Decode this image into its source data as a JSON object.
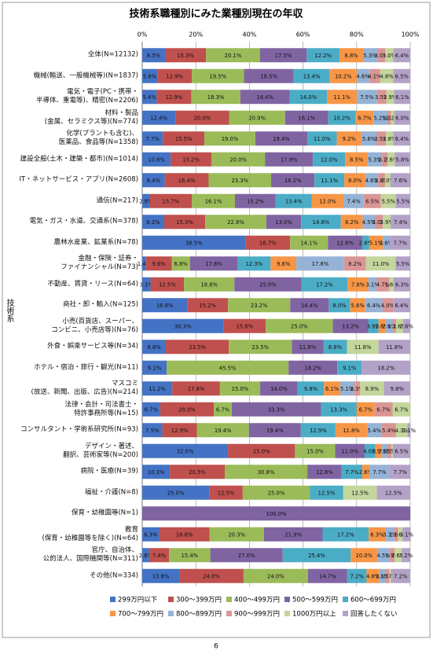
{
  "chart_data": {
    "type": "stacked-bar-horizontal",
    "title": "技術系職種別にみた業種別現在の年収",
    "y_label": "技術系",
    "categories": [
      "全体(N=12132)",
      "機械(輸送、一般機械等)(N=1837)",
      "電気・電子(PC・携帯・\n半導体、重電等)、精密(N=2206)",
      "材料・製品\n(金属、セラミクス等)(N=774)",
      "化学(プラントも含む)、\n医薬品、食品等(N=1358)",
      "建設全般(土木・建築・都市)(N=1014)",
      "IT・ネットサービス・アプリ(N=2608)",
      "通信(N=217)",
      "電気・ガス・水道、交通系(N=378)",
      "農林水産業、鉱業系(N=78)",
      "金融・保険・証券・\nファイナンシャル(N=73)",
      "不動産、賃貸・リース(N=64)",
      "商社・卸・輸入(N=125)",
      "小売(百貨店、スーパー、\nコンビニ、小売店等)(N=76)",
      "外食・娯楽サービス等(N=34)",
      "ホテル・宿泊・旅行・観光(N=11)",
      "マスコミ\n(放送、新聞、出版、広告)(N=214)",
      "法律・会計・司法書士・\n特許事務所等(N=15)",
      "コンサルタント・学術系研究所(N=93)",
      "デザイン・著述、\n翻訳、芸術家等(N=200)",
      "病院・医療(N=39)",
      "福祉・介護(N=8)",
      "保育・幼稚園等(N=1)",
      "教育\n(保育・幼稚園等を除く)(N=64)",
      "官庁、自治体、\n公的法人、国際機関等(N=311)",
      "その他(N=334)"
    ],
    "xlim": [
      0,
      100
    ],
    "xticks": [
      {
        "value": 0,
        "label": "0%"
      },
      {
        "value": 20,
        "label": "20%"
      },
      {
        "value": 40,
        "label": "40%"
      },
      {
        "value": 60,
        "label": "60%"
      },
      {
        "value": 80,
        "label": "80%"
      },
      {
        "value": 100,
        "label": "100%"
      }
    ],
    "grid": true,
    "legend": "bottom",
    "series": [
      {
        "name": "299万円以下",
        "color": "#4472c4",
        "values": [
          8.5,
          5.6,
          5.4,
          12.4,
          7.7,
          10.6,
          8.4,
          2.8,
          8.2,
          38.5,
          1.4,
          3.1,
          16.8,
          30.3,
          8.8,
          9.1,
          11.2,
          6.7,
          7.5,
          32.0,
          10.3,
          25.0,
          0,
          6.3,
          2.6,
          13.8
        ],
        "value_labels": [
          "8.5%",
          "5.6%",
          "5.4%",
          "12.4%",
          "7.7%",
          "10.6%",
          "8.4%",
          "2.8%",
          "8.2%",
          "38.5%",
          "1.4%",
          "3.1%",
          "16.8%",
          "30.3%",
          "8.8%",
          "9.1%",
          "11.2%",
          "6.7%",
          "7.5%",
          "32.0%",
          "10.3%",
          "25.0%",
          null,
          "6.3%",
          "2.6%",
          "13.8%"
        ]
      },
      {
        "name": "300～399万円",
        "color": "#c0504d",
        "values": [
          15.3,
          12.9,
          12.9,
          20.0,
          15.5,
          15.2,
          16.4,
          15.7,
          15.3,
          16.7,
          9.6,
          12.5,
          15.2,
          15.8,
          23.5,
          0,
          17.8,
          20.0,
          12.9,
          25.0,
          20.5,
          12.5,
          0,
          18.8,
          7.4,
          24.0
        ],
        "value_labels": [
          "15.3%",
          "12.9%",
          "12.9%",
          "20.0%",
          "15.5%",
          "15.2%",
          "16.4%",
          "15.7%",
          "15.3%",
          "16.7%",
          "9.6%",
          "12.5%",
          "15.2%",
          "15.8%",
          "23.5%",
          null,
          "17.8%",
          "20.0%",
          "12.9%",
          "25.0%",
          "20.5%",
          "12.5%",
          null,
          "18.8%",
          "7.4%",
          "24.0%"
        ]
      },
      {
        "name": "400～499万円",
        "color": "#9bbb59",
        "values": [
          20.1,
          19.5,
          18.3,
          20.9,
          19.0,
          20.0,
          23.3,
          16.1,
          22.8,
          14.1,
          6.8,
          18.8,
          23.2,
          25.0,
          23.5,
          45.5,
          15.0,
          6.7,
          19.4,
          15.0,
          30.8,
          25.0,
          0,
          20.3,
          15.4,
          24.0
        ],
        "value_labels": [
          "20.1%",
          "19.5%",
          "18.3%",
          "20.9%",
          "19.0%",
          "20.0%",
          "23.3%",
          "16.1%",
          "22.8%",
          "14.1%",
          "6.8%",
          "18.8%",
          "23.2%",
          "25.0%",
          "23.5%",
          "45.5%",
          "15.0%",
          "6.7%",
          "19.4%",
          "15.0%",
          "30.8%",
          "25.0%",
          null,
          "20.3%",
          "15.4%",
          "24.0%"
        ]
      },
      {
        "name": "500～599万円",
        "color": "#8064a2",
        "values": [
          17.5,
          18.5,
          18.4,
          16.1,
          19.4,
          17.9,
          16.2,
          15.2,
          13.0,
          12.8,
          17.8,
          25.0,
          14.4,
          13.2,
          11.8,
          18.2,
          14.0,
          33.3,
          19.4,
          11.0,
          12.8,
          0,
          100.0,
          21.9,
          27.0,
          14.7
        ],
        "value_labels": [
          "17.5%",
          "18.5%",
          "18.4%",
          "16.1%",
          "19.4%",
          "17.9%",
          "16.2%",
          "15.2%",
          "13.0%",
          "12.8%",
          "17.8%",
          "25.0%",
          "14.4%",
          "13.2%",
          "11.8%",
          "18.2%",
          "14.0%",
          "33.3%",
          "19.4%",
          "11.0%",
          "12.8%",
          null,
          "100.0%",
          "21.9%",
          "27.0%",
          "14.7%"
        ]
      },
      {
        "name": "600～699万円",
        "color": "#4bacc6",
        "values": [
          12.2,
          13.4,
          14.0,
          10.2,
          11.0,
          12.0,
          11.1,
          13.4,
          14.8,
          2.6,
          12.3,
          17.2,
          8.0,
          3.9,
          8.8,
          9.1,
          9.8,
          13.3,
          12.9,
          4.0,
          7.7,
          12.5,
          0,
          17.2,
          25.4,
          7.2
        ],
        "value_labels": [
          "12.2%",
          "13.4%",
          "14.0%",
          "10.2%",
          "11.0%",
          "12.0%",
          "11.1%",
          "13.4%",
          "14.8%",
          "2.6%",
          "12.3%",
          "17.2%",
          "8.0%",
          "3.9%",
          "8.8%",
          "9.1%",
          "9.8%",
          "13.3%",
          "12.9%",
          "4.0%",
          "7.7%",
          "12.5%",
          null,
          "17.2%",
          "25.4%",
          "7.2%"
        ]
      },
      {
        "name": "700～799万円",
        "color": "#f79646",
        "values": [
          8.8,
          10.2,
          11.1,
          6.7,
          9.2,
          8.5,
          8.0,
          12.0,
          8.2,
          5.1,
          9.6,
          7.8,
          5.6,
          2.6,
          0,
          0,
          6.1,
          6.7,
          11.8,
          2.5,
          2.6,
          0,
          0,
          6.3,
          10.0,
          4.8
        ],
        "value_labels": [
          "8.8%",
          "10.2%",
          "11.1%",
          "6.7%",
          "9.2%",
          "8.5%",
          "8.0%",
          "12.0%",
          "8.2%",
          "5.1%",
          "9.6%",
          "7.8%",
          "5.6%",
          "2.6%",
          null,
          null,
          "6.1%",
          "6.7%",
          "11.8%",
          "2.5%",
          "2.6%",
          null,
          null,
          "6.3%",
          "10.0%",
          "4.8%"
        ]
      },
      {
        "name": "800～899万円",
        "color": "#95b3d7",
        "values": [
          5.3,
          4.6,
          7.5,
          5.2,
          5.6,
          5.3,
          4.6,
          7.4,
          4.5,
          2.6,
          17.8,
          3.1,
          6.4,
          2.6,
          0,
          0,
          5.1,
          0,
          5.4,
          2.0,
          7.7,
          0,
          0,
          3.1,
          4.5,
          2.1
        ],
        "value_labels": [
          "5.3%",
          "4.6%",
          "7.5%",
          "5.2%",
          "5.6%",
          "5.3%",
          "4.6%",
          "7.4%",
          "4.5%",
          "2.6%",
          "17.8%",
          "3.1%",
          "6.4%",
          "2.6%",
          null,
          null,
          "5.1%",
          null,
          "5.4%",
          "2.0%",
          "7.7%",
          null,
          null,
          "3.1%",
          "4.5%",
          "2.1%"
        ]
      },
      {
        "name": "900～999万円",
        "color": "#d99694",
        "values": [
          3.0,
          4.1,
          3.5,
          1.3,
          3.5,
          2.1,
          2.6,
          6.5,
          3.0,
          0,
          8.2,
          4.7,
          4.0,
          1.3,
          0,
          0,
          2.3,
          6.7,
          5.4,
          1.5,
          0,
          0,
          0,
          1.6,
          1.9,
          1.5
        ],
        "value_labels": [
          "3.0%",
          "4.1%",
          "3.5%",
          "1.3%",
          "3.5%",
          "2.1%",
          "2.6%",
          "6.5%",
          "3.0%",
          null,
          "8.2%",
          "4.7%",
          "4.0%",
          "1.3%",
          null,
          null,
          "2.3%",
          "6.7%",
          "5.4%",
          "1.5%",
          null,
          null,
          null,
          "1.6%",
          "1.9%",
          "1.5%"
        ]
      },
      {
        "name": "1000万円以上",
        "color": "#c3d69b",
        "values": [
          3.0,
          4.8,
          2.9,
          1.2,
          2.8,
          2.6,
          2.0,
          5.5,
          2.9,
          0,
          11.0,
          1.6,
          0,
          2.6,
          11.8,
          0,
          8.9,
          6.7,
          4.3,
          0.5,
          0,
          12.5,
          0,
          1.6,
          2.6,
          0.7
        ],
        "value_labels": [
          "3.0%",
          "4.8%",
          "2.9%",
          "1.2%",
          "2.8%",
          "2.6%",
          "2.0%",
          "5.5%",
          "2.9%",
          null,
          "11.0%",
          "1.6%",
          null,
          "2.6%",
          "11.8%",
          null,
          "8.9%",
          "6.7%",
          "4.3%",
          "0.5%",
          null,
          "12.5%",
          null,
          "1.6%",
          "2.6%",
          "0.7%"
        ]
      },
      {
        "name": "回答したくない",
        "color": "#b3a2c7",
        "values": [
          6.4,
          6.5,
          6.1,
          6.0,
          6.4,
          5.8,
          7.6,
          5.5,
          7.4,
          7.7,
          5.5,
          6.3,
          6.4,
          2.6,
          11.8,
          18.2,
          9.8,
          0,
          1.1,
          6.5,
          7.7,
          12.5,
          0,
          3.1,
          3.2,
          7.2
        ],
        "value_labels": [
          "6.4%",
          "6.5%",
          "6.1%",
          "6.0%",
          "6.4%",
          "5.8%",
          "7.6%",
          "5.5%",
          "7.4%",
          "7.7%",
          "5.5%",
          "6.3%",
          "6.4%",
          "2.6%",
          "11.8%",
          "18.2%",
          "9.8%",
          null,
          "1.1%",
          "6.5%",
          "7.7%",
          "12.5%",
          null,
          "3.1%",
          "3.2%",
          "7.2%"
        ]
      }
    ]
  },
  "footer": {
    "page_number": "6"
  }
}
